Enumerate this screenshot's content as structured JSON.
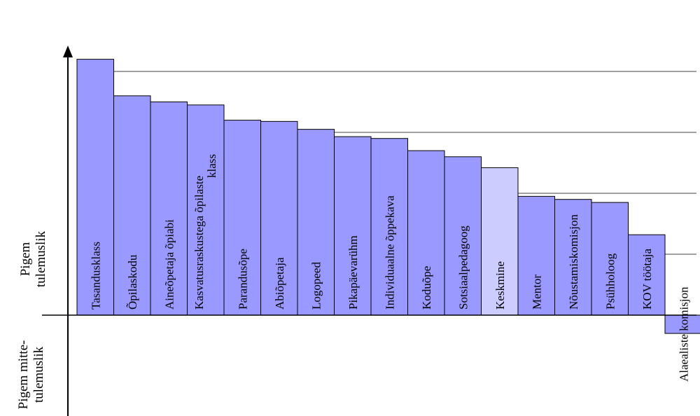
{
  "chart_data": {
    "type": "bar",
    "categories": [
      "Tasandusklass",
      "Õpilaskodu",
      "Aineõpetaja õpiabi",
      "Kasvatusraskustega õpilaste klass",
      "Parandusõpe",
      "Abiõpetaja",
      "Logopeed",
      "Pikapäevarühm",
      "Individuaalne õppekava",
      "Koduõpe",
      "Sotsiaalpedagoog",
      "Keskmine",
      "Mentor",
      "Nõustamiskomisjon",
      "Psühholoog",
      "KOV töötaja",
      "Alaealiste komisjon"
    ],
    "values": [
      4.2,
      3.6,
      3.5,
      3.45,
      3.2,
      3.18,
      3.05,
      2.93,
      2.9,
      2.7,
      2.6,
      2.42,
      1.95,
      1.9,
      1.85,
      1.32,
      -0.3
    ],
    "highlight": "Keskmine",
    "ylim": [
      -1.7,
      4.2
    ],
    "gridlines": [
      1.0,
      2.0,
      3.0,
      4.0
    ],
    "grid": true,
    "legend": "none",
    "colors": {
      "bar": "#9999ff",
      "highlight": "#ccccff",
      "stroke": "#000000",
      "grid": "#000000"
    }
  },
  "axis": {
    "positive_label_line1": "Pigem",
    "positive_label_line2": "tulemuslik",
    "negative_label_line1": "Pigem mitte-",
    "negative_label_line2": "tulemuslik"
  }
}
